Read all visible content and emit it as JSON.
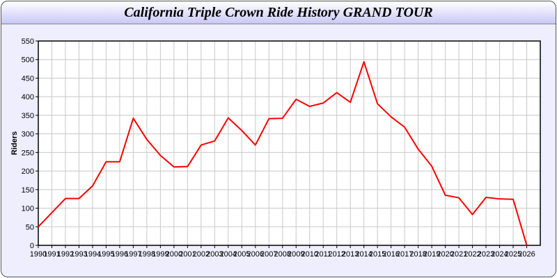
{
  "chart_data": {
    "type": "line",
    "title": "California Triple Crown Ride History GRAND TOUR",
    "xlabel": "",
    "ylabel": "Riders",
    "xlim": [
      1990,
      2027
    ],
    "ylim": [
      0,
      550
    ],
    "yticks": [
      0,
      50,
      100,
      150,
      200,
      250,
      300,
      350,
      400,
      450,
      500,
      550
    ],
    "grid": true,
    "line_color": "#ff0000",
    "x": [
      1990,
      1991,
      1992,
      1993,
      1994,
      1995,
      1996,
      1997,
      1998,
      1999,
      2000,
      2001,
      2002,
      2003,
      2004,
      2005,
      2006,
      2007,
      2008,
      2009,
      2010,
      2011,
      2012,
      2013,
      2014,
      2015,
      2016,
      2017,
      2018,
      2019,
      2020,
      2021,
      2022,
      2023,
      2024,
      2025,
      2026
    ],
    "series": [
      {
        "values": [
          50,
          88,
          126,
          126,
          160,
          225,
          225,
          342,
          285,
          242,
          211,
          212,
          270,
          281,
          343,
          309,
          270,
          341,
          342,
          393,
          374,
          383,
          411,
          385,
          494,
          381,
          346,
          318,
          259,
          213,
          135,
          128,
          83,
          129,
          125,
          124,
          0
        ]
      }
    ]
  }
}
